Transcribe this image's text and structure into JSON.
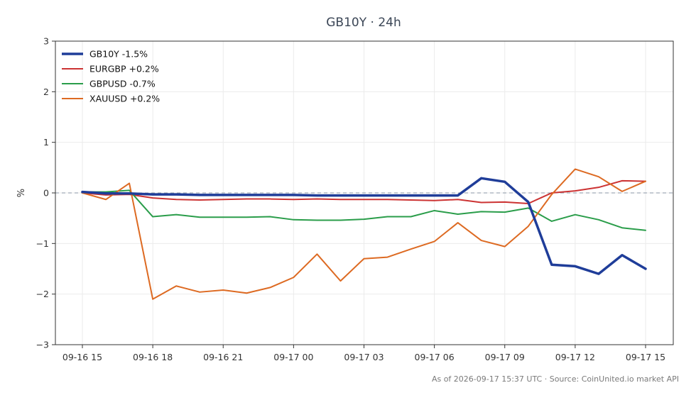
{
  "chart_data": {
    "type": "line",
    "title": "GB10Y · 24h",
    "ylabel": "%",
    "xlabel": "",
    "ylim": [
      -3,
      3
    ],
    "y_ticks": [
      3,
      2,
      1,
      0,
      -1,
      -2,
      -3
    ],
    "y_tick_labels": [
      "3",
      "2",
      "1",
      "0",
      "−1",
      "−2",
      "−3"
    ],
    "x_ticks": [
      0,
      3,
      6,
      9,
      12,
      15,
      18,
      21,
      24
    ],
    "x_tick_labels": [
      "09-16 15",
      "09-16 18",
      "09-16 21",
      "09-17 00",
      "09-17 03",
      "09-17 06",
      "09-17 09",
      "09-17 12",
      "09-17 15"
    ],
    "x_unit": "hours since 09-16 15:00",
    "zero_line": true,
    "grid": true,
    "legend_position": "top-left",
    "series": [
      {
        "name": "GB10Y -1.5%",
        "color": "#1f3d99",
        "emphasis": true,
        "values": [
          0.02,
          -0.01,
          -0.01,
          -0.03,
          -0.03,
          -0.04,
          -0.04,
          -0.04,
          -0.04,
          -0.04,
          -0.05,
          -0.05,
          -0.05,
          -0.05,
          -0.05,
          -0.05,
          -0.05,
          0.29,
          0.22,
          -0.18,
          -1.42,
          -1.45,
          -1.6,
          -1.23,
          -1.5
        ]
      },
      {
        "name": "EURGBP +0.2%",
        "color": "#cc3333",
        "emphasis": false,
        "values": [
          0.0,
          -0.04,
          -0.03,
          -0.1,
          -0.13,
          -0.14,
          -0.13,
          -0.12,
          -0.12,
          -0.13,
          -0.12,
          -0.13,
          -0.13,
          -0.13,
          -0.14,
          -0.15,
          -0.13,
          -0.19,
          -0.18,
          -0.21,
          0.0,
          0.04,
          0.11,
          0.24,
          0.23
        ]
      },
      {
        "name": "GBPUSD -0.7%",
        "color": "#2a9d4a",
        "emphasis": false,
        "values": [
          0.02,
          0.02,
          0.05,
          -0.47,
          -0.43,
          -0.48,
          -0.48,
          -0.48,
          -0.47,
          -0.53,
          -0.54,
          -0.54,
          -0.52,
          -0.47,
          -0.47,
          -0.35,
          -0.42,
          -0.37,
          -0.38,
          -0.3,
          -0.56,
          -0.43,
          -0.53,
          -0.69,
          -0.74
        ]
      },
      {
        "name": "XAUUSD +0.2%",
        "color": "#dd6a22",
        "emphasis": false,
        "values": [
          0.0,
          -0.13,
          0.19,
          -2.1,
          -1.84,
          -1.96,
          -1.92,
          -1.98,
          -1.87,
          -1.67,
          -1.21,
          -1.74,
          -1.3,
          -1.27,
          -1.11,
          -0.96,
          -0.59,
          -0.94,
          -1.06,
          -0.66,
          -0.03,
          0.47,
          0.32,
          0.03,
          0.23
        ]
      }
    ]
  },
  "footer": {
    "note": "As of 2026-09-17 15:37 UTC · Source: CoinUnited.io market API"
  }
}
